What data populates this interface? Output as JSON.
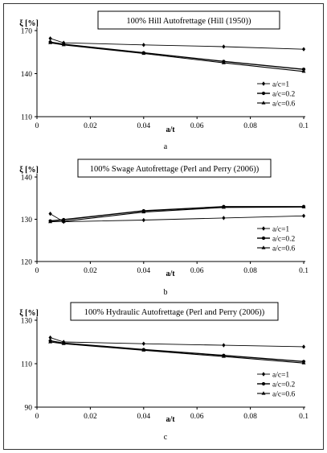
{
  "chart_data": [
    {
      "type": "line",
      "title": "100% Hill Autofrettage (Hill (1950))",
      "ylabel": "ξ [%]",
      "xlabel": "a/t",
      "caption": "a",
      "x": [
        0.005,
        0.01,
        0.04,
        0.07,
        0.1
      ],
      "xlim": [
        0,
        0.1
      ],
      "xticks": [
        "0",
        "0.02",
        "0.04",
        "0.06",
        "0.08",
        "0.1"
      ],
      "ylim": [
        110,
        170
      ],
      "yticks": [
        "110",
        "140",
        "170"
      ],
      "legend_position": "bottom-right",
      "series": [
        {
          "name": "a/c=1",
          "marker": "diamond",
          "values": [
            164.5,
            161.5,
            160.0,
            158.8,
            157.0
          ]
        },
        {
          "name": "a/c=0.2",
          "marker": "circle",
          "values": [
            162.0,
            160.5,
            154.5,
            148.5,
            143.0
          ]
        },
        {
          "name": "a/c=0.6",
          "marker": "triangle",
          "values": [
            161.5,
            160.0,
            154.0,
            147.5,
            141.5
          ]
        }
      ]
    },
    {
      "type": "line",
      "title": "100% Swage Autofrettage (Perl and Perry (2006))",
      "ylabel": "ξ [%]",
      "xlabel": "a/t",
      "caption": "b",
      "x": [
        0.005,
        0.01,
        0.04,
        0.07,
        0.1
      ],
      "xlim": [
        0,
        0.1
      ],
      "xticks": [
        "0",
        "0.02",
        "0.04",
        "0.06",
        "0.08",
        "0.1"
      ],
      "ylim": [
        120,
        140
      ],
      "yticks": [
        "120",
        "130",
        "140"
      ],
      "legend_position": "bottom-right",
      "series": [
        {
          "name": "a/c=1",
          "marker": "diamond",
          "values": [
            131.3,
            129.4,
            129.8,
            130.3,
            130.8
          ]
        },
        {
          "name": "a/c=0.2",
          "marker": "circle",
          "values": [
            129.6,
            129.9,
            132.0,
            133.0,
            133.0
          ]
        },
        {
          "name": "a/c=0.6",
          "marker": "triangle",
          "values": [
            129.4,
            129.5,
            131.7,
            132.8,
            132.9
          ]
        }
      ]
    },
    {
      "type": "line",
      "title": "100% Hydraulic Autofrettage (Perl and Perry (2006))",
      "ylabel": "ξ [%]",
      "xlabel": "a/t",
      "caption": "c",
      "x": [
        0.005,
        0.01,
        0.04,
        0.07,
        0.1
      ],
      "xlim": [
        0,
        0.1
      ],
      "xticks": [
        "0",
        "0.02",
        "0.04",
        "0.06",
        "0.08",
        "0.1"
      ],
      "ylim": [
        90,
        130
      ],
      "yticks": [
        "90",
        "110",
        "130"
      ],
      "legend_position": "bottom-right",
      "series": [
        {
          "name": "a/c=1",
          "marker": "diamond",
          "values": [
            122.0,
            120.0,
            119.2,
            118.5,
            117.8
          ]
        },
        {
          "name": "a/c=0.2",
          "marker": "circle",
          "values": [
            120.5,
            119.5,
            116.5,
            113.8,
            111.0
          ]
        },
        {
          "name": "a/c=0.6",
          "marker": "triangle",
          "values": [
            120.0,
            119.2,
            116.2,
            113.3,
            110.3
          ]
        }
      ]
    }
  ]
}
